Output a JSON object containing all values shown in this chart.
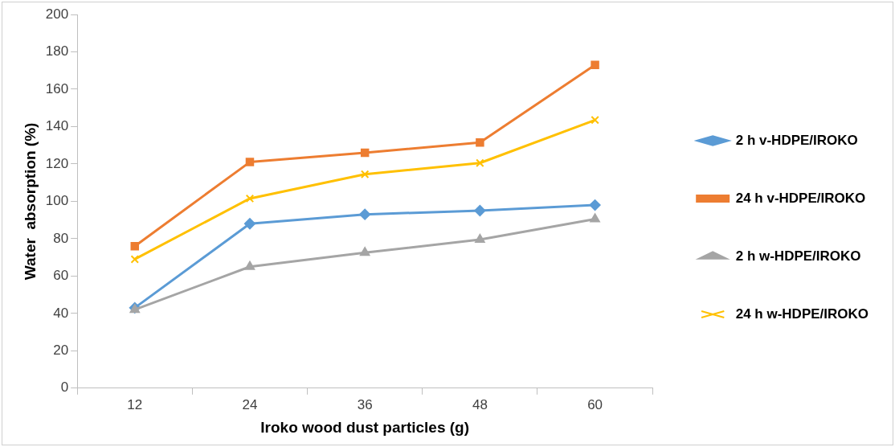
{
  "chart_data": {
    "type": "line",
    "xlabel": "Iroko wood dust particles (g)",
    "ylabel": "Water  absorption (%)",
    "categories": [
      "12",
      "24",
      "36",
      "48",
      "60"
    ],
    "ylim": [
      0,
      200
    ],
    "yticks": [
      0,
      20,
      40,
      60,
      80,
      100,
      120,
      140,
      160,
      180,
      200
    ],
    "grid": false,
    "legend": "right",
    "line_style": "solid",
    "series": [
      {
        "name": "2 h v-HDPE/IROKO",
        "color": "#5b9bd5",
        "marker": "diamond",
        "values": [
          43,
          88,
          93,
          95,
          98
        ]
      },
      {
        "name": "24 h v-HDPE/IROKO",
        "color": "#ed7d31",
        "marker": "square",
        "values": [
          76,
          121,
          126,
          131.5,
          173
        ]
      },
      {
        "name": "2 h w-HDPE/IROKO",
        "color": "#a5a5a5",
        "marker": "triangle",
        "values": [
          42,
          65,
          72.5,
          79.5,
          90.5
        ]
      },
      {
        "name": "24 h w-HDPE/IROKO",
        "color": "#ffc000",
        "marker": "cross",
        "values": [
          69,
          101.5,
          114.5,
          120.5,
          143.5
        ]
      }
    ]
  }
}
